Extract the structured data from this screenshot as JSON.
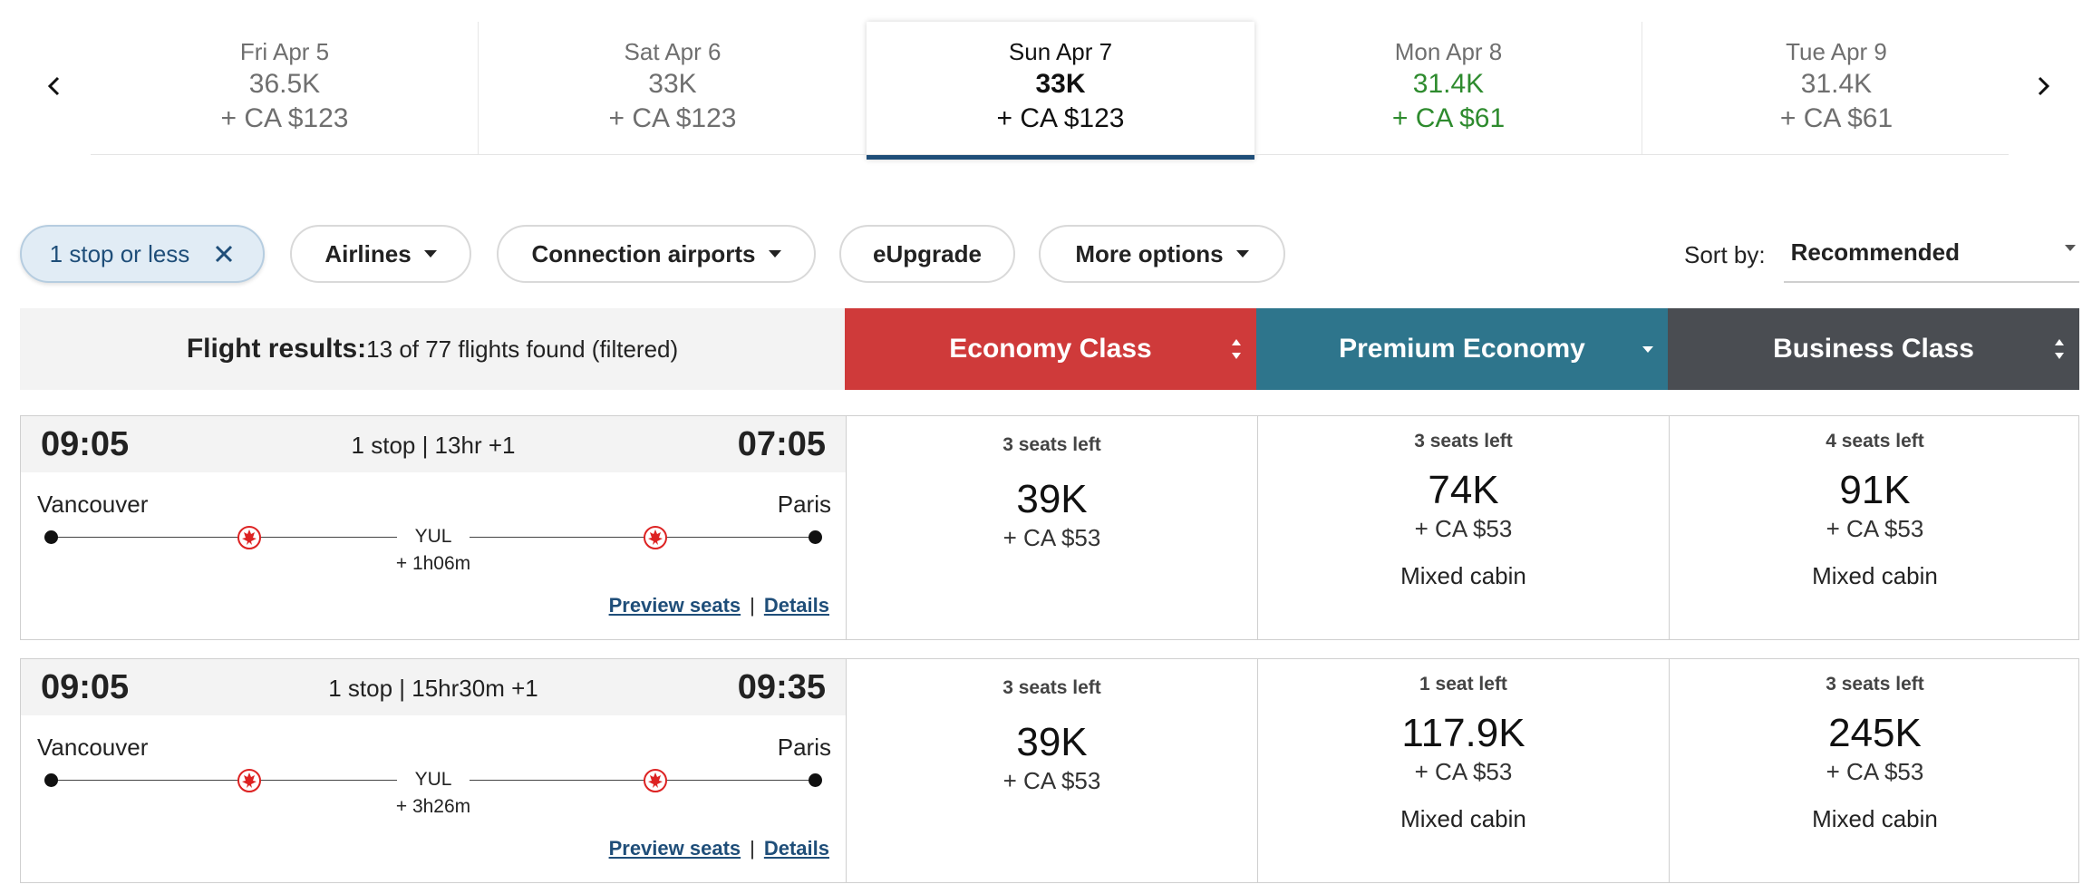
{
  "dates": [
    {
      "day": "Fri Apr 5",
      "points": "36.5K",
      "tax": "+ CA $123"
    },
    {
      "day": "Sat Apr 6",
      "points": "33K",
      "tax": "+ CA $123"
    },
    {
      "day": "Sun Apr 7",
      "points": "33K",
      "tax": "+ CA $123"
    },
    {
      "day": "Mon Apr 8",
      "points": "31.4K",
      "tax": "+ CA $61"
    },
    {
      "day": "Tue Apr 9",
      "points": "31.4K",
      "tax": "+ CA $61"
    }
  ],
  "filters": {
    "stops": "1 stop or less",
    "airlines": "Airlines",
    "connection": "Connection airports",
    "eupgrade": "eUpgrade",
    "more": "More options"
  },
  "sort": {
    "label": "Sort by:",
    "value": "Recommended"
  },
  "results": {
    "label": "Flight results:",
    "count": "13 of 77 flights found (filtered)"
  },
  "cabins": {
    "economy": "Economy Class",
    "premium": "Premium Economy",
    "business": "Business Class"
  },
  "colors": {
    "economy": "#cf3a3a",
    "premium": "#2e758c",
    "business": "#4a4d52",
    "cheaper": "#2e8b2e",
    "accent": "#1f4e79"
  },
  "links": {
    "preview": "Preview seats",
    "separator": "|",
    "details": "Details"
  },
  "flights": [
    {
      "depart": "09:05",
      "summary": "1 stop | 13hr +1",
      "arrive": "07:05",
      "from": "Vancouver",
      "to": "Paris",
      "stop": "YUL",
      "layover": "+ 1h06m",
      "economy": {
        "seats": "3 seats left",
        "points": "39K",
        "tax": "+ CA $53"
      },
      "premium": {
        "seats": "3 seats left",
        "points": "74K",
        "tax": "+ CA $53",
        "note": "Mixed cabin"
      },
      "business": {
        "seats": "4 seats left",
        "points": "91K",
        "tax": "+ CA $53",
        "note": "Mixed cabin"
      }
    },
    {
      "depart": "09:05",
      "summary": "1 stop | 15hr30m +1",
      "arrive": "09:35",
      "from": "Vancouver",
      "to": "Paris",
      "stop": "YUL",
      "layover": "+ 3h26m",
      "economy": {
        "seats": "3 seats left",
        "points": "39K",
        "tax": "+ CA $53"
      },
      "premium": {
        "seats": "1 seat left",
        "points": "117.9K",
        "tax": "+ CA $53",
        "note": "Mixed cabin"
      },
      "business": {
        "seats": "3 seats left",
        "points": "245K",
        "tax": "+ CA $53",
        "note": "Mixed cabin"
      }
    }
  ]
}
